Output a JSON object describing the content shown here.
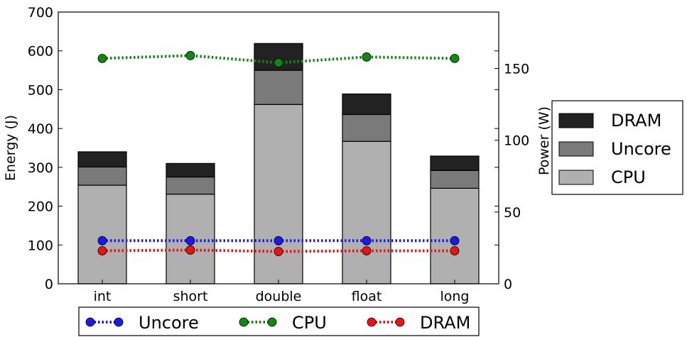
{
  "chart_data": {
    "type": "bar",
    "categories": [
      "int",
      "short",
      "double",
      "float",
      "long"
    ],
    "stacked_bars": {
      "axis": "left",
      "series": [
        {
          "name": "CPU",
          "color": "#b0b0b0",
          "values": [
            254,
            231,
            462,
            367,
            246
          ]
        },
        {
          "name": "Uncore",
          "color": "#7a7a7a",
          "values": [
            47,
            44,
            88,
            69,
            46
          ]
        },
        {
          "name": "DRAM",
          "color": "#222222",
          "values": [
            39,
            35,
            69,
            53,
            37
          ]
        }
      ]
    },
    "lines": {
      "axis": "right",
      "series": [
        {
          "name": "Uncore",
          "color": "#1a1aee",
          "values": [
            30,
            30,
            30,
            30,
            30
          ]
        },
        {
          "name": "CPU",
          "color": "#0f8a0f",
          "values": [
            157,
            159,
            154,
            158,
            157
          ]
        },
        {
          "name": "DRAM",
          "color": "#ee1111",
          "values": [
            23,
            23.5,
            22.5,
            23,
            23
          ]
        }
      ]
    },
    "ylabel": "Energy (J)",
    "y2label": "Power (W)",
    "ylim": [
      0,
      700
    ],
    "y2lim": [
      0,
      189.3
    ],
    "yticks": [
      0,
      100,
      200,
      300,
      400,
      500,
      600,
      700
    ],
    "y2ticks": [
      0,
      50,
      100,
      150
    ],
    "legend_bars": [
      "DRAM",
      "Uncore",
      "CPU"
    ],
    "legend_lines": [
      "Uncore",
      "CPU",
      "DRAM"
    ],
    "legend_bars_position": "right",
    "legend_lines_position": "bottom",
    "grid": false
  }
}
